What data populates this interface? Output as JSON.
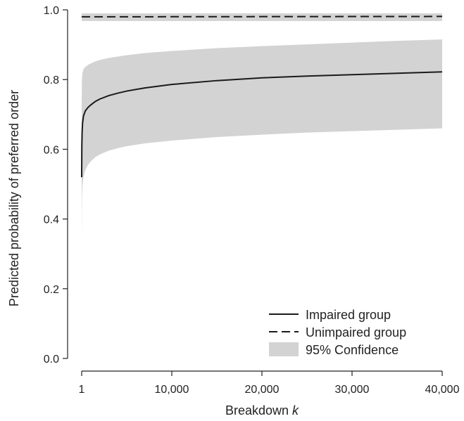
{
  "chart_data": {
    "type": "line",
    "xlabel": "Breakdown",
    "xlabel_var": "k",
    "ylabel": "Predicted probability of preferred order",
    "xlim": [
      1,
      40000
    ],
    "ylim": [
      0,
      1
    ],
    "x_ticks": [
      1,
      10000,
      20000,
      30000,
      40000
    ],
    "x_tick_labels": [
      "1",
      "10,000",
      "20,000",
      "30,000",
      "40,000"
    ],
    "y_ticks": [
      0,
      0.2,
      0.4,
      0.6,
      0.8,
      1
    ],
    "y_tick_labels": [
      "0.0",
      "0.2",
      "0.4",
      "0.6",
      "0.8",
      "1.0"
    ],
    "grid": false,
    "legend_position": "bottom-right",
    "series": [
      {
        "name": "Impaired group",
        "style": "solid",
        "color": "#1a1a1a",
        "x": [
          1,
          20,
          50,
          100,
          200,
          400,
          700,
          1000,
          1500,
          2000,
          3000,
          4000,
          5000,
          7000,
          10000,
          15000,
          20000,
          25000,
          30000,
          35000,
          40000
        ],
        "values": [
          0.52,
          0.61,
          0.65,
          0.675,
          0.695,
          0.71,
          0.72,
          0.727,
          0.737,
          0.744,
          0.754,
          0.761,
          0.767,
          0.776,
          0.786,
          0.797,
          0.805,
          0.81,
          0.814,
          0.818,
          0.822
        ]
      },
      {
        "name": "Unimpaired group",
        "style": "dashed",
        "color": "#1a1a1a",
        "x": [
          1,
          40000
        ],
        "values": [
          0.98,
          0.981
        ]
      }
    ],
    "bands": [
      {
        "name": "95% Confidence",
        "color": "#d3d3d3",
        "x": [
          1,
          20,
          50,
          100,
          200,
          400,
          700,
          1000,
          1500,
          2000,
          3000,
          4000,
          5000,
          7000,
          10000,
          15000,
          20000,
          25000,
          30000,
          35000,
          40000
        ],
        "lower": [
          0.33,
          0.42,
          0.47,
          0.5,
          0.52,
          0.54,
          0.555,
          0.565,
          0.577,
          0.585,
          0.596,
          0.603,
          0.609,
          0.617,
          0.625,
          0.635,
          0.642,
          0.648,
          0.652,
          0.656,
          0.66
        ],
        "upper": [
          0.72,
          0.79,
          0.81,
          0.82,
          0.83,
          0.836,
          0.842,
          0.846,
          0.852,
          0.856,
          0.862,
          0.866,
          0.87,
          0.876,
          0.882,
          0.89,
          0.896,
          0.901,
          0.906,
          0.911,
          0.915
        ]
      },
      {
        "name": "95% Confidence",
        "color": "#d3d3d3",
        "x": [
          1,
          40000
        ],
        "lower": [
          0.968,
          0.968
        ],
        "upper": [
          0.99,
          0.99
        ]
      }
    ],
    "legend": [
      {
        "label": "Impaired group",
        "symbol": "solid-line"
      },
      {
        "label": "Unimpaired group",
        "symbol": "dashed-line"
      },
      {
        "label": "95% Confidence",
        "symbol": "gray-box"
      }
    ]
  }
}
